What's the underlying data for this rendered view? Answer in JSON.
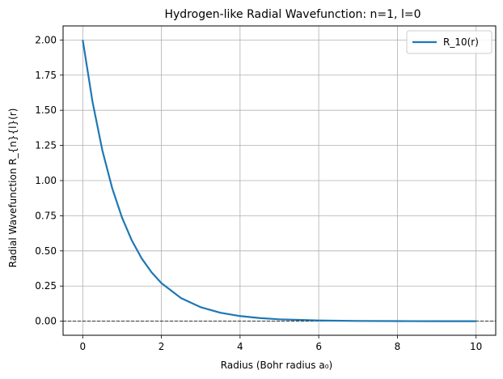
{
  "chart_data": {
    "type": "line",
    "title": "Hydrogen-like Radial Wavefunction: n=1, l=0",
    "xlabel": "Radius (Bohr radius a₀)",
    "ylabel": "Radial Wavefunction R_{n}{l}(r)",
    "xlim": [
      -0.5,
      10.5
    ],
    "ylim": [
      -0.1,
      2.1
    ],
    "xticks": [
      0,
      2,
      4,
      6,
      8,
      10
    ],
    "xtick_labels": [
      "0",
      "2",
      "4",
      "6",
      "8",
      "10"
    ],
    "yticks": [
      0,
      0.25,
      0.5,
      0.75,
      1.0,
      1.25,
      1.5,
      1.75,
      2.0
    ],
    "ytick_labels": [
      "0.00",
      "0.25",
      "0.50",
      "0.75",
      "1.00",
      "1.25",
      "1.50",
      "1.75",
      "2.00"
    ],
    "grid": true,
    "legend_position": "top-right",
    "reference_line": {
      "y": 0,
      "style": "dashed",
      "color": "#000000"
    },
    "series": [
      {
        "name": "R_10(r)",
        "color": "#1f77b4",
        "x": [
          0,
          0.25,
          0.5,
          0.75,
          1.0,
          1.25,
          1.5,
          1.75,
          2.0,
          2.5,
          3.0,
          3.5,
          4.0,
          4.5,
          5.0,
          6.0,
          7.0,
          8.0,
          9.0,
          10.0
        ],
        "y": [
          2.0,
          1.558,
          1.213,
          0.945,
          0.736,
          0.573,
          0.446,
          0.348,
          0.271,
          0.164,
          0.0996,
          0.0604,
          0.0366,
          0.0222,
          0.0135,
          0.005,
          0.0018,
          0.0007,
          0.0002,
          0.0001
        ]
      }
    ]
  }
}
